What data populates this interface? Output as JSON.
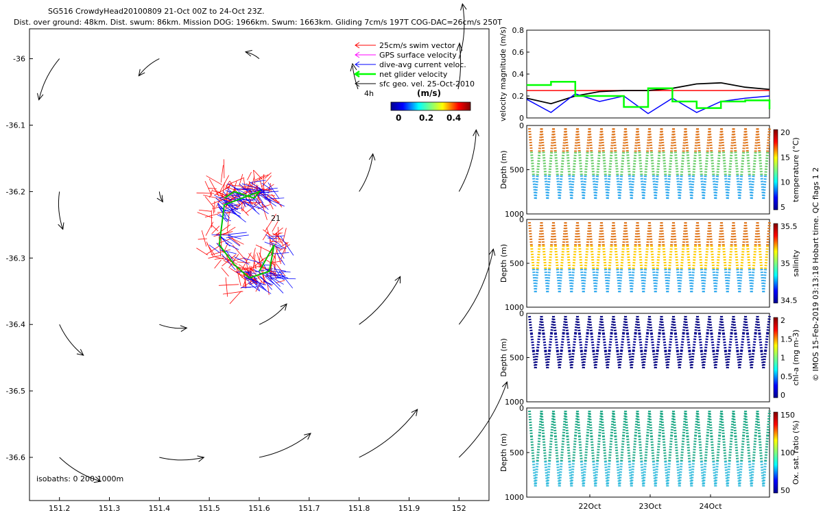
{
  "header": {
    "line1": "SG516 CrowdyHead20100809 21-Oct 00Z to 24-Oct 23Z.",
    "line2": "Dist. over ground: 48km. Dist. swum: 86km. Mission DOG: 1966km. Swum: 1663km. Gliding 7cm/s 197T COG-DAC=26cm/s 250T"
  },
  "map": {
    "legend": [
      {
        "label": "25cm/s swim vector",
        "color": "#ff0000"
      },
      {
        "label": "GPS surface velocity",
        "color": "#ff00ff"
      },
      {
        "label": "dive-avg current veloc.",
        "color": "#0000ff"
      },
      {
        "label": "net glider velocity",
        "color": "#00ff00"
      },
      {
        "label": "sfc geo. vel. 25-Oct-2010",
        "color": "#000000"
      }
    ],
    "label_4h": "4h",
    "colorbar_title": "(m/s)",
    "colorbar_ticks": [
      "0",
      "0.2",
      "0.4"
    ],
    "endpoint_label": "21",
    "isobaths_text": "isobaths: 0 200  1000m",
    "x_ticks": [
      "151.2",
      "151.3",
      "151.4",
      "151.5",
      "151.6",
      "151.7",
      "151.8",
      "151.9",
      "152"
    ],
    "y_ticks": [
      "-36",
      "-36.1",
      "-36.2",
      "-36.3",
      "-36.4",
      "-36.5",
      "-36.6"
    ]
  },
  "panels": {
    "velocity": {
      "ylabel": "velocity magnitude (m/s)",
      "y_ticks": [
        "0",
        "0.2",
        "0.4",
        "0.6",
        "0.8"
      ]
    },
    "temperature": {
      "ylabel": "Depth (m)",
      "cbar_label": "temperature (°C)",
      "cbar_ticks": [
        "20",
        "15",
        "10",
        "5"
      ],
      "y_ticks": [
        "0",
        "500",
        "1000"
      ]
    },
    "salinity": {
      "ylabel": "Depth (m)",
      "cbar_label": "salinity",
      "cbar_ticks": [
        "35.5",
        "35",
        "34.5"
      ],
      "y_ticks": [
        "0",
        "500",
        "1000"
      ]
    },
    "chla": {
      "ylabel": "Depth (m)",
      "cbar_label": "chl-a (mg m-3)",
      "cbar_ticks": [
        "2",
        "1.5",
        "1",
        "0.5",
        "0"
      ],
      "y_ticks": [
        "0",
        "500",
        "1000"
      ]
    },
    "oxygen": {
      "ylabel": "Depth (m)",
      "cbar_label": "Ox. sat. ratio (%)",
      "cbar_ticks": [
        "150",
        "100",
        "50"
      ],
      "y_ticks": [
        "0",
        "500",
        "1000"
      ]
    },
    "x_ticks": [
      "22Oct",
      "23Oct",
      "24Oct"
    ]
  },
  "side_note": "© IMOS 15-Feb-2019 03:13:18 Hobart time. QC flags 1  2",
  "chart_data": [
    {
      "type": "scatter",
      "title": "SG516 CrowdyHead20100809 21-Oct 00Z to 24-Oct 23Z.",
      "xlim": [
        151.14,
        152.06
      ],
      "ylim": [
        -36.665,
        -35.955
      ],
      "xlabel": "",
      "ylabel": "",
      "geo_velocity_arrows": [
        {
          "lon": 151.2,
          "lat": -36.0,
          "u": -0.03,
          "v": -0.06
        },
        {
          "lon": 151.4,
          "lat": -36.0,
          "u": -0.03,
          "v": -0.025
        },
        {
          "lon": 151.6,
          "lat": -36.0,
          "u": -0.02,
          "v": 0.01
        },
        {
          "lon": 152.0,
          "lat": -36.0,
          "u": 0.005,
          "v": 0.08
        },
        {
          "lon": 151.2,
          "lat": -36.2,
          "u": 0.005,
          "v": -0.055
        },
        {
          "lon": 151.4,
          "lat": -36.2,
          "u": 0.005,
          "v": -0.015
        },
        {
          "lon": 151.8,
          "lat": -36.2,
          "u": 0.02,
          "v": 0.055
        },
        {
          "lon": 152.0,
          "lat": -36.2,
          "u": 0.025,
          "v": 0.09
        },
        {
          "lon": 151.2,
          "lat": -36.4,
          "u": 0.035,
          "v": -0.045
        },
        {
          "lon": 151.4,
          "lat": -36.4,
          "u": 0.04,
          "v": -0.005
        },
        {
          "lon": 151.6,
          "lat": -36.4,
          "u": 0.04,
          "v": 0.03
        },
        {
          "lon": 151.8,
          "lat": -36.4,
          "u": 0.06,
          "v": 0.07
        },
        {
          "lon": 152.0,
          "lat": -36.4,
          "u": 0.05,
          "v": 0.11
        },
        {
          "lon": 151.2,
          "lat": -36.6,
          "u": 0.06,
          "v": -0.035
        },
        {
          "lon": 151.4,
          "lat": -36.6,
          "u": 0.065,
          "v": 0.0
        },
        {
          "lon": 151.6,
          "lat": -36.6,
          "u": 0.075,
          "v": 0.035
        },
        {
          "lon": 151.8,
          "lat": -36.6,
          "u": 0.085,
          "v": 0.07
        },
        {
          "lon": 152.0,
          "lat": -36.6,
          "u": 0.07,
          "v": 0.11
        }
      ],
      "glider_track": [
        [
          151.53,
          -36.21
        ],
        [
          151.55,
          -36.2
        ],
        [
          151.59,
          -36.21
        ],
        [
          151.6,
          -36.2
        ],
        [
          151.53,
          -36.22
        ],
        [
          151.52,
          -36.28
        ],
        [
          151.55,
          -36.31
        ],
        [
          151.58,
          -36.33
        ],
        [
          151.62,
          -36.32
        ],
        [
          151.63,
          -36.28
        ],
        [
          151.6,
          -36.32
        ]
      ]
    },
    {
      "type": "line",
      "ylabel": "velocity magnitude (m/s)",
      "ylim": [
        0,
        0.8
      ],
      "x": [
        0,
        0.5,
        1,
        1.5,
        2,
        2.5,
        3,
        3.5,
        4,
        4.5,
        5
      ],
      "series": [
        {
          "color": "#ff0000",
          "values": [
            0.25,
            0.25,
            0.25,
            0.25,
            0.25,
            0.25,
            0.25,
            0.25,
            0.25,
            0.25,
            0.25
          ]
        },
        {
          "color": "#000000",
          "values": [
            0.18,
            0.13,
            0.2,
            0.24,
            0.25,
            0.25,
            0.27,
            0.31,
            0.32,
            0.28,
            0.26
          ]
        },
        {
          "color": "#0000ff",
          "values": [
            0.17,
            0.05,
            0.22,
            0.15,
            0.2,
            0.04,
            0.18,
            0.05,
            0.15,
            0.18,
            0.2
          ]
        },
        {
          "color": "#00ff00",
          "values": [
            0.3,
            0.33,
            0.2,
            0.2,
            0.1,
            0.27,
            0.15,
            0.09,
            0.15,
            0.16,
            0.08
          ]
        }
      ]
    }
  ]
}
